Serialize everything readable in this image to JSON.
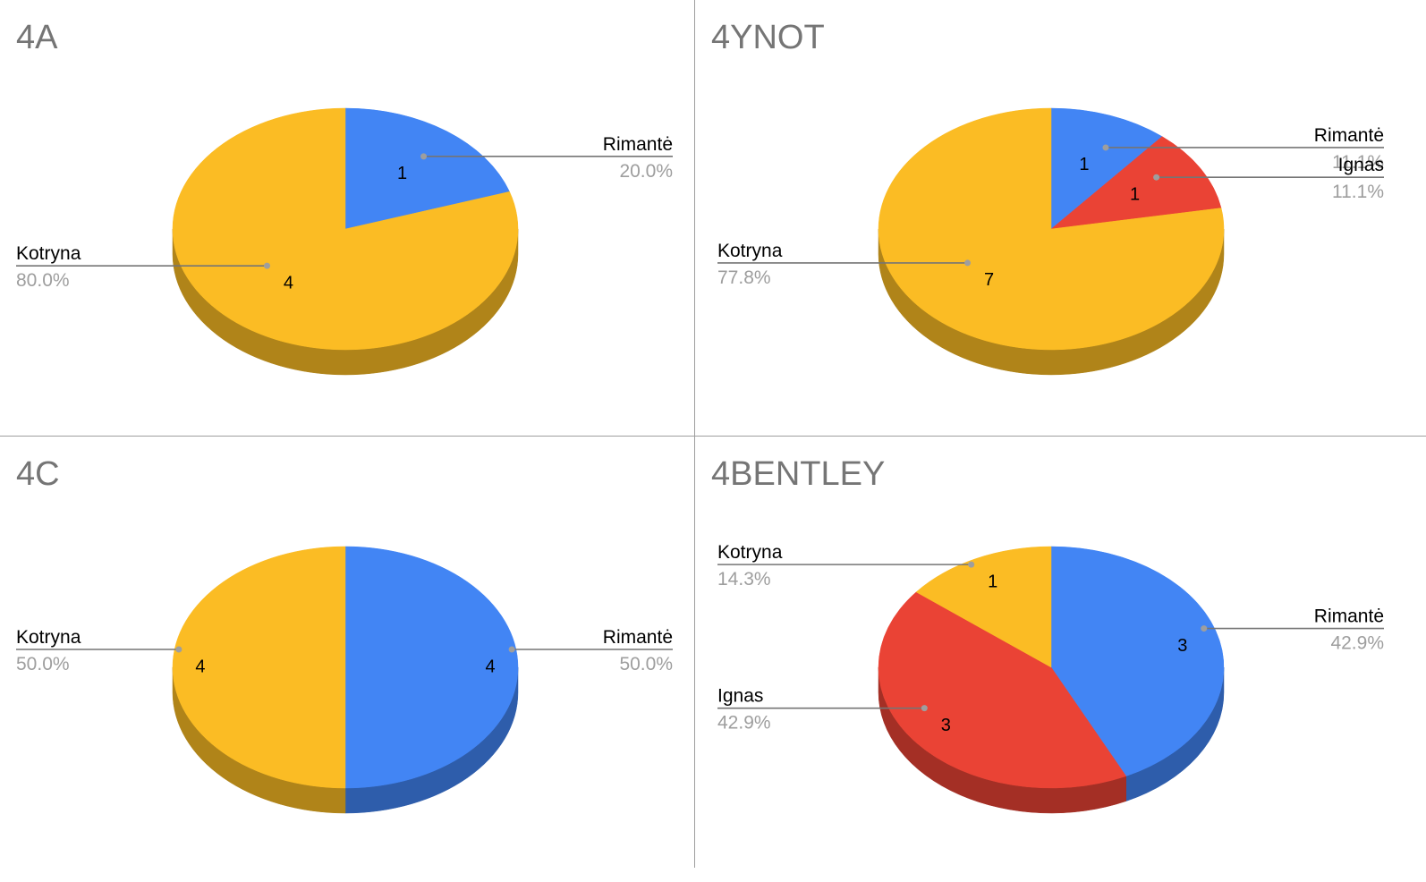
{
  "chart_data": [
    {
      "type": "pie",
      "title": "4A",
      "slices": [
        {
          "name": "Rimantė",
          "value": 1,
          "percent": "20.0%",
          "color": "#4285f4"
        },
        {
          "name": "Kotryna",
          "value": 4,
          "percent": "80.0%",
          "color": "#fbbc24"
        }
      ]
    },
    {
      "type": "pie",
      "title": "4YNOT",
      "slices": [
        {
          "name": "Rimantė",
          "value": 1,
          "percent": "11.1%",
          "color": "#4285f4"
        },
        {
          "name": "Ignas",
          "value": 1,
          "percent": "11.1%",
          "color": "#ea4335"
        },
        {
          "name": "Kotryna",
          "value": 7,
          "percent": "77.8%",
          "color": "#fbbc24"
        }
      ]
    },
    {
      "type": "pie",
      "title": "4C",
      "slices": [
        {
          "name": "Rimantė",
          "value": 4,
          "percent": "50.0%",
          "color": "#4285f4"
        },
        {
          "name": "Kotryna",
          "value": 4,
          "percent": "50.0%",
          "color": "#fbbc24"
        }
      ]
    },
    {
      "type": "pie",
      "title": "4BENTLEY",
      "slices": [
        {
          "name": "Rimantė",
          "value": 3,
          "percent": "42.9%",
          "color": "#4285f4"
        },
        {
          "name": "Ignas",
          "value": 3,
          "percent": "42.9%",
          "color": "#ea4335"
        },
        {
          "name": "Kotryna",
          "value": 1,
          "percent": "14.3%",
          "color": "#fbbc24"
        }
      ]
    }
  ]
}
